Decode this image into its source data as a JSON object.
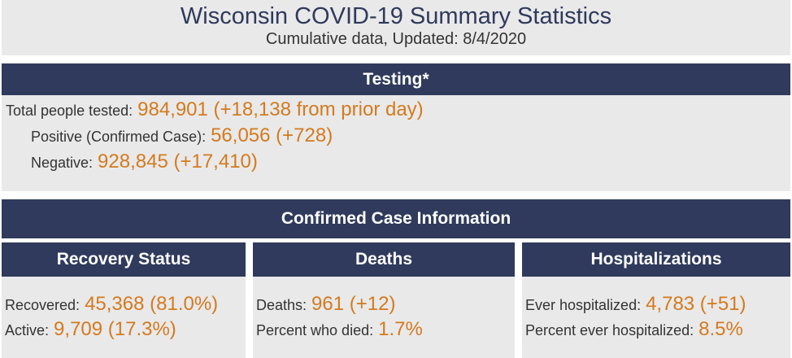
{
  "header": {
    "title": "Wisconsin COVID-19 Summary Statistics",
    "subtitle": "Cumulative data, Updated: 8/4/2020"
  },
  "testing": {
    "heading": "Testing*",
    "rows": [
      {
        "label": "Total people tested:",
        "value": "984,901 (+18,138 from prior day)"
      },
      {
        "label": "Positive (Confirmed Case):",
        "value": "56,056 (+728)"
      },
      {
        "label": "Negative:",
        "value": "928,845 (+17,410)"
      }
    ]
  },
  "confirmed": {
    "heading": "Confirmed Case Information",
    "panels": [
      {
        "heading": "Recovery Status",
        "rows": [
          {
            "label": "Recovered:",
            "value": "45,368 (81.0%)"
          },
          {
            "label": "Active:",
            "value": "9,709 (17.3%)"
          }
        ]
      },
      {
        "heading": "Deaths",
        "rows": [
          {
            "label": "Deaths:",
            "value": "961 (+12)"
          },
          {
            "label": "Percent who died:",
            "value": "1.7%"
          }
        ]
      },
      {
        "heading": "Hospitalizations",
        "rows": [
          {
            "label": "Ever hospitalized:",
            "value": "4,783 (+51)"
          },
          {
            "label": "Percent ever hospitalized:",
            "value": "8.5%"
          }
        ]
      }
    ]
  }
}
